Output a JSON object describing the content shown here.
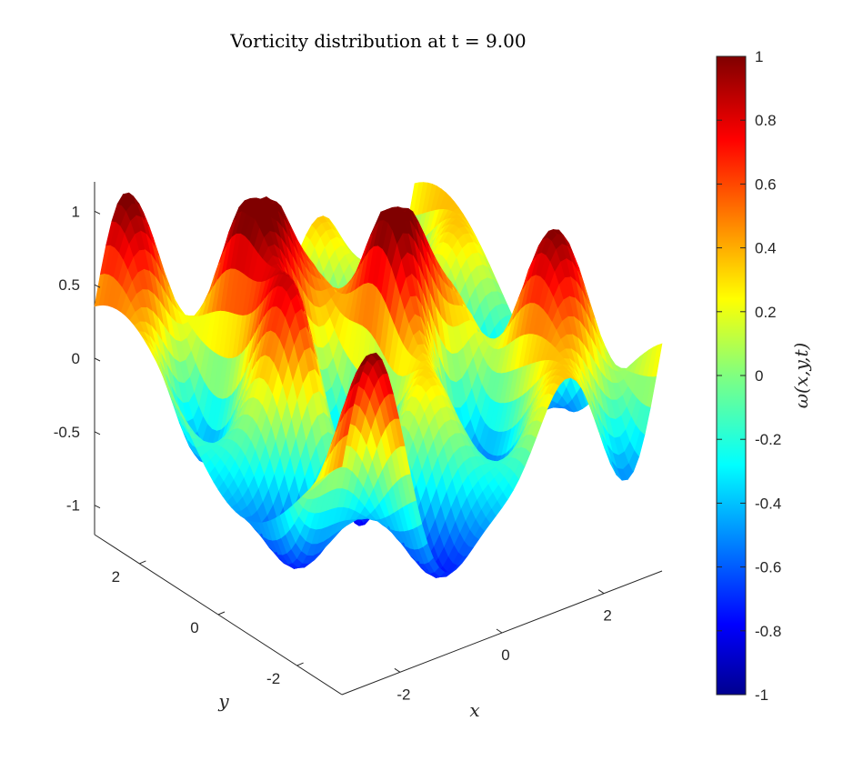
{
  "chart_data": {
    "type": "surface",
    "title": "Vorticity distribution at t = 9.00",
    "xlabel": "x",
    "ylabel": "y",
    "zlabel": "",
    "colorbar_label": "ω(x,y,t)",
    "colormap": "jet",
    "xlim": [
      -3.14,
      3.14
    ],
    "ylim": [
      -3.14,
      3.14
    ],
    "zlim": [
      -1.2,
      1.2
    ],
    "clim": [
      -1,
      1
    ],
    "x_ticks": [
      "-2",
      "0",
      "2"
    ],
    "y_ticks": [
      "-2",
      "0",
      "2"
    ],
    "z_ticks": [
      "-1",
      "-0.5",
      "0",
      "0.5",
      "1"
    ],
    "colorbar_ticks": [
      "-1",
      "-0.8",
      "-0.6",
      "-0.4",
      "-0.2",
      "0",
      "0.2",
      "0.4",
      "0.6",
      "0.8",
      "1"
    ],
    "x_tick_values": [
      -2,
      0,
      2
    ],
    "y_tick_values": [
      -2,
      0,
      2
    ],
    "z_tick_values": [
      -1,
      -0.5,
      0,
      0.5,
      1
    ],
    "colorbar_tick_values": [
      -1,
      -0.8,
      -0.6,
      -0.4,
      -0.2,
      0,
      0.2,
      0.4,
      0.6,
      0.8,
      1
    ],
    "grid": false,
    "surface_peaks": [
      {
        "x": -1.6,
        "y": 1.6,
        "z": 0.97
      },
      {
        "x": 0.0,
        "y": 1.6,
        "z": 0.92
      },
      {
        "x": 1.6,
        "y": 1.6,
        "z": 0.95
      },
      {
        "x": -1.6,
        "y": 0.0,
        "z": 0.92
      },
      {
        "x": 0.0,
        "y": 0.0,
        "z": 0.97
      },
      {
        "x": 1.6,
        "y": 0.0,
        "z": 0.93
      }
    ],
    "surface_troughs": [
      {
        "x": -0.8,
        "y": -0.8,
        "z": -0.97
      },
      {
        "x": 0.8,
        "y": -0.8,
        "z": -0.95
      },
      {
        "x": 2.4,
        "y": -0.8,
        "z": -0.92
      }
    ]
  }
}
